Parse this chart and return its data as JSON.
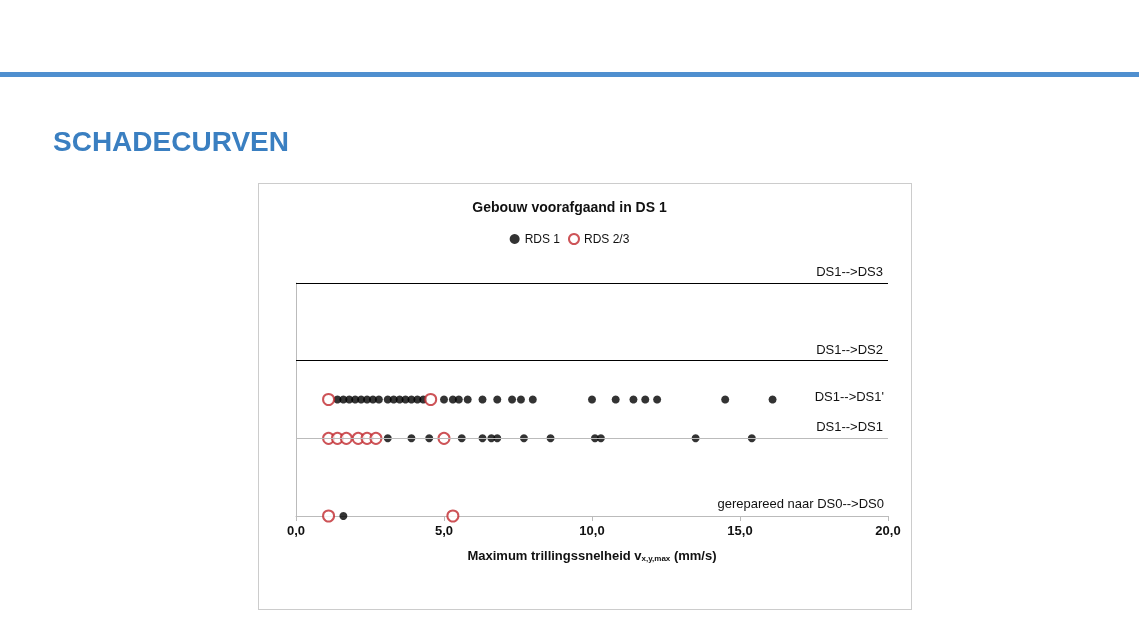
{
  "chart_data": {
    "type": "scatter",
    "title": "SCHADECURVEN",
    "subtitle": "Gebouw voorafgaand in DS 1",
    "xlabel": "Maximum trillingssnelheid v$_{x,y,max}$ (mm/s)",
    "series": [
      {
        "name": "RDS 1",
        "color": "#000000",
        "x": [
          1.6,
          1.4,
          1.6,
          1.8,
          2.0,
          2.2,
          2.4,
          2.6,
          2.8,
          3.1,
          3.3,
          3.5,
          3.7,
          3.9,
          4.1,
          4.3,
          5.0,
          5.3,
          5.5,
          5.8,
          6.3,
          6.8,
          7.3,
          7.6,
          8.0,
          10.0,
          10.8,
          11.4,
          11.8,
          12.2,
          14.5,
          16.1,
          3.1,
          3.9,
          4.5,
          5.6,
          6.3,
          6.6,
          6.8,
          7.7,
          8.6,
          10.1,
          10.3,
          13.5,
          15.4
        ],
        "values": [
          0,
          1.5,
          1.5,
          1.5,
          1.5,
          1.5,
          1.5,
          1.5,
          1.5,
          1.5,
          1.5,
          1.5,
          1.5,
          1.5,
          1.5,
          1.5,
          1.5,
          1.5,
          1.5,
          1.5,
          1.5,
          1.5,
          1.5,
          1.5,
          1.5,
          1.5,
          1.5,
          1.5,
          1.5,
          1.5,
          1.5,
          1.5,
          1,
          1,
          1,
          1,
          1,
          1,
          1,
          1,
          1,
          1,
          1,
          1,
          1
        ]
      },
      {
        "name": "RDS 2/3",
        "color": "#c0282d",
        "x": [
          1.1,
          5.3,
          1.1,
          4.55,
          1.1,
          1.4,
          1.7,
          2.1,
          2.4,
          2.7,
          5.0
        ],
        "values": [
          0,
          0,
          1.5,
          1.5,
          1,
          1,
          1,
          1,
          1,
          1,
          1
        ]
      }
    ],
    "xlim": [
      0,
      20
    ],
    "xticks": [
      {
        "value": 0,
        "label": "0,0"
      },
      {
        "value": 5,
        "label": "5,0"
      },
      {
        "value": 10,
        "label": "10,0"
      },
      {
        "value": 15,
        "label": "15,0"
      },
      {
        "value": 20,
        "label": "20,0"
      }
    ],
    "ylim": [
      0,
      3
    ],
    "tick_labels": "x",
    "ref_lines": [
      {
        "axis": "y",
        "value": 3,
        "label": "DS1-->DS3",
        "color": "#000000"
      },
      {
        "axis": "y",
        "value": 2,
        "label": "DS1-->DS2",
        "color": "#000000"
      },
      {
        "axis": "y",
        "value": 1,
        "label": "DS1-->DS1",
        "color": "#bbbbbb"
      }
    ],
    "annotations": [
      "DS1-->DS1'",
      "gerepareed naar DS0-->DS0"
    ],
    "legend": "top",
    "grid": false,
    "marker": "circle"
  }
}
